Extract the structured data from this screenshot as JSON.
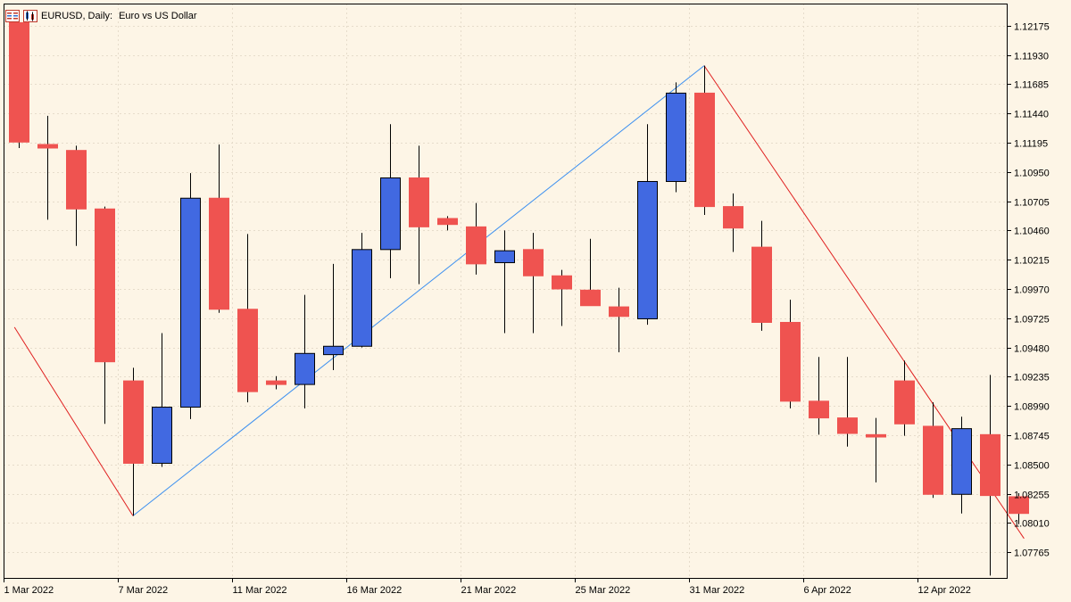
{
  "window": {
    "symbol_label": "EURUSD, Daily:",
    "description": "Euro vs US Dollar"
  },
  "colors": {
    "background": "#fdf5e6",
    "bull": "#4169e1",
    "bear": "#ef5350",
    "zigzag_up": "#3b8ff0",
    "zigzag_down": "#e02020",
    "grid": "#e6dccb",
    "axis": "#000000"
  },
  "chart_data": {
    "type": "candlestick",
    "symbol": "EURUSD",
    "timeframe": "Daily",
    "ylim": [
      1.0755,
      1.1236
    ],
    "y_ticks": [
      "1.12175",
      "1.11930",
      "1.11685",
      "1.11440",
      "1.11195",
      "1.10950",
      "1.10705",
      "1.10460",
      "1.10215",
      "1.09970",
      "1.09725",
      "1.09480",
      "1.09235",
      "1.08990",
      "1.08745",
      "1.08500",
      "1.08255",
      "1.08010",
      "1.07765"
    ],
    "x_tick_labels": [
      {
        "index": 0,
        "label": "1 Mar 2022"
      },
      {
        "index": 4,
        "label": "7 Mar 2022"
      },
      {
        "index": 8,
        "label": "11 Mar 2022"
      },
      {
        "index": 12,
        "label": "16 Mar 2022"
      },
      {
        "index": 16,
        "label": "21 Mar 2022"
      },
      {
        "index": 20,
        "label": "25 Mar 2022"
      },
      {
        "index": 24,
        "label": "31 Mar 2022"
      },
      {
        "index": 28,
        "label": "6 Apr 2022"
      },
      {
        "index": 32,
        "label": "12 Apr 2022"
      }
    ],
    "grid": true,
    "candles": [
      {
        "o": 1.122,
        "h": 1.1225,
        "l": 1.1115,
        "c": 1.112
      },
      {
        "o": 1.1118,
        "h": 1.1142,
        "l": 1.1055,
        "c": 1.1115
      },
      {
        "o": 1.1113,
        "h": 1.1117,
        "l": 1.1033,
        "c": 1.1064
      },
      {
        "o": 1.1064,
        "h": 1.1066,
        "l": 1.0884,
        "c": 1.0936
      },
      {
        "o": 1.092,
        "h": 1.0931,
        "l": 1.0807,
        "c": 1.0851
      },
      {
        "o": 1.0851,
        "h": 1.096,
        "l": 1.0848,
        "c": 1.0898
      },
      {
        "o": 1.0898,
        "h": 1.1094,
        "l": 1.0888,
        "c": 1.1073
      },
      {
        "o": 1.1073,
        "h": 1.1118,
        "l": 1.0977,
        "c": 1.098
      },
      {
        "o": 1.098,
        "h": 1.1043,
        "l": 1.0902,
        "c": 1.0911
      },
      {
        "o": 1.092,
        "h": 1.0924,
        "l": 1.0913,
        "c": 1.0917
      },
      {
        "o": 1.0917,
        "h": 1.0992,
        "l": 1.0897,
        "c": 1.0943
      },
      {
        "o": 1.0942,
        "h": 1.1018,
        "l": 1.0929,
        "c": 1.0949
      },
      {
        "o": 1.0949,
        "h": 1.1044,
        "l": 1.0948,
        "c": 1.103
      },
      {
        "o": 1.103,
        "h": 1.1135,
        "l": 1.1006,
        "c": 1.109
      },
      {
        "o": 1.109,
        "h": 1.1117,
        "l": 1.1001,
        "c": 1.1049
      },
      {
        "o": 1.1056,
        "h": 1.1058,
        "l": 1.1046,
        "c": 1.1051
      },
      {
        "o": 1.1049,
        "h": 1.1069,
        "l": 1.1009,
        "c": 1.1018
      },
      {
        "o": 1.1019,
        "h": 1.1046,
        "l": 1.096,
        "c": 1.1029
      },
      {
        "o": 1.103,
        "h": 1.1044,
        "l": 1.096,
        "c": 1.1008
      },
      {
        "o": 1.1008,
        "h": 1.1013,
        "l": 1.0966,
        "c": 1.0997
      },
      {
        "o": 1.0996,
        "h": 1.1039,
        "l": 1.0984,
        "c": 1.0983
      },
      {
        "o": 1.0982,
        "h": 1.0998,
        "l": 1.0944,
        "c": 1.0974
      },
      {
        "o": 1.0972,
        "h": 1.1135,
        "l": 1.0967,
        "c": 1.1087
      },
      {
        "o": 1.1087,
        "h": 1.117,
        "l": 1.1078,
        "c": 1.1161
      },
      {
        "o": 1.1161,
        "h": 1.1184,
        "l": 1.1059,
        "c": 1.1066
      },
      {
        "o": 1.1066,
        "h": 1.1077,
        "l": 1.1028,
        "c": 1.1048
      },
      {
        "o": 1.1032,
        "h": 1.1054,
        "l": 1.0962,
        "c": 1.0969
      },
      {
        "o": 1.0969,
        "h": 1.0988,
        "l": 1.0897,
        "c": 1.0903
      },
      {
        "o": 1.0903,
        "h": 1.094,
        "l": 1.0875,
        "c": 1.0889
      },
      {
        "o": 1.0889,
        "h": 1.094,
        "l": 1.0865,
        "c": 1.0876
      },
      {
        "o": 1.0875,
        "h": 1.0889,
        "l": 1.0835,
        "c": 1.0873
      },
      {
        "o": 1.092,
        "h": 1.0937,
        "l": 1.0874,
        "c": 1.0884
      },
      {
        "o": 1.0882,
        "h": 1.0902,
        "l": 1.0822,
        "c": 1.0825
      },
      {
        "o": 1.0825,
        "h": 1.089,
        "l": 1.0809,
        "c": 1.088
      },
      {
        "o": 1.0875,
        "h": 1.0925,
        "l": 1.0757,
        "c": 1.0824
      },
      {
        "o": 1.0823,
        "h": 1.0826,
        "l": 1.08,
        "c": 1.0809
      }
    ],
    "zigzag": [
      {
        "index": -0.15,
        "value": 1.0965
      },
      {
        "index": 4,
        "value": 1.0807
      },
      {
        "index": 24,
        "value": 1.1184
      },
      {
        "index": 35.2,
        "value": 1.0788
      }
    ]
  }
}
